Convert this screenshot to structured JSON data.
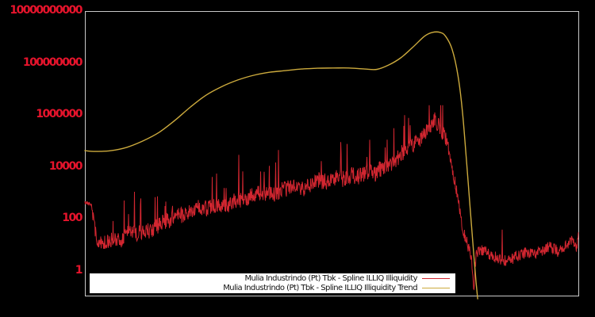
{
  "figure": {
    "background": "#000000",
    "axis_border_color": "#c9c9c9",
    "tick_label_color": "#e6142c"
  },
  "legend": {
    "items": [
      {
        "label": "Mulia Industrindo (Pt) Tbk - Spline ILLIQ Illiquidity",
        "color": "#d12630"
      },
      {
        "label": "Mulia Industrindo (Pt) Tbk - Spline ILLIQ Illiquidity Trend",
        "color": "#ccaa3d"
      }
    ]
  },
  "chart_data": {
    "type": "line",
    "title": "",
    "xlabel": "",
    "ylabel": "",
    "x_axis": {
      "tick_labels": []
    },
    "y_axis": {
      "scale": "log10",
      "ticks": [
        1,
        100,
        10000,
        1000000,
        100000000,
        10000000000
      ],
      "tick_labels": [
        "1",
        "100",
        "10000",
        "1000000",
        "100000000",
        "10000000000"
      ],
      "tick_exponents": [
        0,
        2,
        4,
        6,
        8,
        10
      ],
      "approx_range": [
        0.1,
        10000000000
      ]
    },
    "series": [
      {
        "name": "Mulia Industrindo (Pt) Tbk - Spline ILLIQ Illiquidity",
        "color": "#d12630",
        "style": "noisy",
        "points_log10": [
          [
            0.0,
            2.6
          ],
          [
            0.013,
            2.55
          ],
          [
            0.018,
            1.9
          ],
          [
            0.024,
            1.2
          ],
          [
            0.04,
            1.1
          ],
          [
            0.056,
            1.25
          ],
          [
            0.072,
            1.15
          ],
          [
            0.088,
            1.45
          ],
          [
            0.104,
            1.35
          ],
          [
            0.121,
            1.55
          ],
          [
            0.137,
            1.5
          ],
          [
            0.153,
            1.8
          ],
          [
            0.169,
            1.9
          ],
          [
            0.185,
            2.2
          ],
          [
            0.201,
            2.1
          ],
          [
            0.217,
            2.3
          ],
          [
            0.233,
            2.45
          ],
          [
            0.249,
            2.35
          ],
          [
            0.265,
            2.5
          ],
          [
            0.281,
            2.45
          ],
          [
            0.297,
            2.6
          ],
          [
            0.313,
            2.7
          ],
          [
            0.33,
            2.8
          ],
          [
            0.346,
            2.95
          ],
          [
            0.362,
            3.0
          ],
          [
            0.378,
            2.9
          ],
          [
            0.394,
            3.05
          ],
          [
            0.41,
            3.15
          ],
          [
            0.426,
            3.25
          ],
          [
            0.442,
            3.15
          ],
          [
            0.458,
            3.3
          ],
          [
            0.474,
            3.45
          ],
          [
            0.49,
            3.4
          ],
          [
            0.506,
            3.55
          ],
          [
            0.522,
            3.5
          ],
          [
            0.539,
            3.65
          ],
          [
            0.555,
            3.6
          ],
          [
            0.571,
            3.8
          ],
          [
            0.587,
            3.7
          ],
          [
            0.603,
            3.95
          ],
          [
            0.619,
            4.05
          ],
          [
            0.632,
            4.3
          ],
          [
            0.648,
            4.6
          ],
          [
            0.664,
            4.8
          ],
          [
            0.68,
            5.05
          ],
          [
            0.696,
            5.4
          ],
          [
            0.709,
            5.8
          ],
          [
            0.72,
            5.5
          ],
          [
            0.731,
            5.05
          ],
          [
            0.741,
            4.3
          ],
          [
            0.752,
            3.2
          ],
          [
            0.76,
            2.2
          ],
          [
            0.768,
            1.4
          ],
          [
            0.776,
            0.95
          ],
          [
            0.784,
            0.35
          ],
          [
            0.788,
            -0.7
          ],
          [
            0.793,
            0.65
          ],
          [
            0.801,
            0.8
          ],
          [
            0.817,
            0.65
          ],
          [
            0.833,
            0.5
          ],
          [
            0.849,
            0.35
          ],
          [
            0.865,
            0.4
          ],
          [
            0.881,
            0.6
          ],
          [
            0.897,
            0.7
          ],
          [
            0.913,
            0.6
          ],
          [
            0.929,
            0.8
          ],
          [
            0.945,
            0.9
          ],
          [
            0.961,
            0.7
          ],
          [
            0.977,
            0.95
          ],
          [
            0.988,
            1.25
          ],
          [
            0.997,
            0.8
          ],
          [
            1.0,
            1.4
          ]
        ],
        "noise_zones": [
          {
            "from": 0.0,
            "to": 0.016,
            "amp": 0.06,
            "spike_prob": 0.0
          },
          {
            "from": 0.016,
            "to": 0.74,
            "amp": 0.32,
            "spike_prob": 0.045
          },
          {
            "from": 0.74,
            "to": 0.78,
            "amp": 0.25,
            "spike_prob": 0.0
          },
          {
            "from": 0.78,
            "to": 1.001,
            "amp": 0.22,
            "spike_prob": 0.012
          }
        ],
        "max_log10": 6.35
      },
      {
        "name": "Mulia Industrindo (Pt) Tbk - Spline ILLIQ Illiquidity Trend",
        "color": "#ccaa3d",
        "style": "smooth",
        "points_log10": [
          [
            0.0,
            4.6
          ],
          [
            0.021,
            4.57
          ],
          [
            0.053,
            4.6
          ],
          [
            0.085,
            4.73
          ],
          [
            0.117,
            4.97
          ],
          [
            0.15,
            5.3
          ],
          [
            0.182,
            5.76
          ],
          [
            0.214,
            6.28
          ],
          [
            0.246,
            6.74
          ],
          [
            0.278,
            7.07
          ],
          [
            0.31,
            7.32
          ],
          [
            0.342,
            7.5
          ],
          [
            0.375,
            7.62
          ],
          [
            0.407,
            7.68
          ],
          [
            0.439,
            7.74
          ],
          [
            0.471,
            7.77
          ],
          [
            0.503,
            7.78
          ],
          [
            0.535,
            7.78
          ],
          [
            0.567,
            7.74
          ],
          [
            0.592,
            7.73
          ],
          [
            0.616,
            7.9
          ],
          [
            0.64,
            8.17
          ],
          [
            0.664,
            8.57
          ],
          [
            0.688,
            9.0
          ],
          [
            0.704,
            9.15
          ],
          [
            0.72,
            9.15
          ],
          [
            0.731,
            9.0
          ],
          [
            0.744,
            8.51
          ],
          [
            0.756,
            7.5
          ],
          [
            0.765,
            6.13
          ],
          [
            0.773,
            4.3
          ],
          [
            0.781,
            2.32
          ],
          [
            0.788,
            0.64
          ],
          [
            0.793,
            -0.5
          ],
          [
            0.796,
            -1.1
          ]
        ]
      }
    ]
  }
}
